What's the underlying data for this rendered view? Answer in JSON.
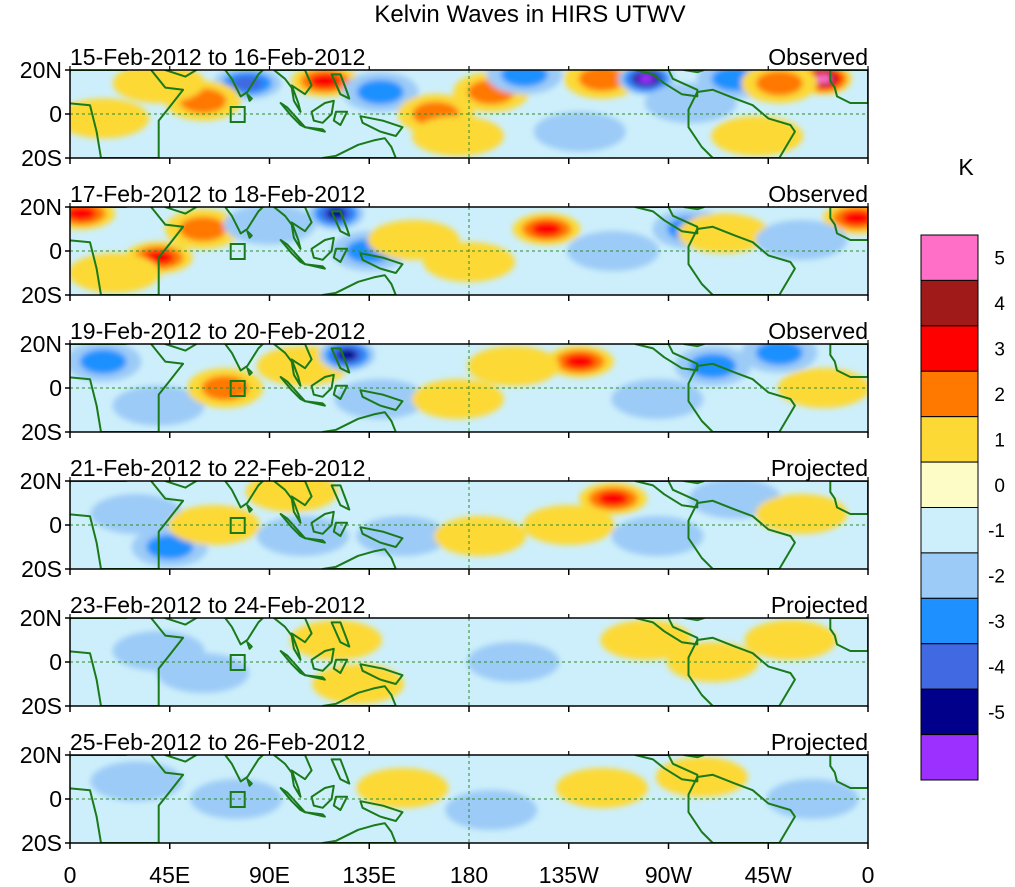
{
  "chart_data": {
    "type": "heatmap",
    "title": "Kelvin Waves in HIRS UTWV",
    "units": "K",
    "x_ticks": [
      "0",
      "45E",
      "90E",
      "135E",
      "180",
      "135W",
      "90W",
      "45W",
      "0"
    ],
    "y_ticks": [
      "20N",
      "0",
      "20S"
    ],
    "colorbar": {
      "colors": [
        "#9b30ff",
        "#00008b",
        "#4169e1",
        "#1e90ff",
        "#9ccbf7",
        "#cdeffb",
        "#fdfbc6",
        "#fcd934",
        "#ff7800",
        "#ff0000",
        "#a11a1a",
        "#ff6ec7"
      ],
      "labels": [
        "-5",
        "-4",
        "-3",
        "-2",
        "-1",
        "0",
        "1",
        "2",
        "3",
        "4",
        "5"
      ]
    },
    "colors": {
      "coast": "#1a7a1a",
      "zero_line": "#2e8b2e",
      "ocean": "#cdeffb"
    },
    "panels": [
      {
        "label": "15-Feb-2012 to 16-Feb-2012",
        "kind": "Observed",
        "blobs": [
          {
            "lon": 80,
            "lat": 14,
            "v": -3
          },
          {
            "lon": 60,
            "lat": 6,
            "v": 2
          },
          {
            "lon": 40,
            "lat": 14,
            "v": 1
          },
          {
            "lon": 15,
            "lat": -2,
            "v": 1
          },
          {
            "lon": 115,
            "lat": 15,
            "v": 3
          },
          {
            "lon": 140,
            "lat": 10,
            "v": -2
          },
          {
            "lon": 165,
            "lat": 0,
            "v": 2
          },
          {
            "lon": 190,
            "lat": 10,
            "v": 2
          },
          {
            "lon": 175,
            "lat": -10,
            "v": 1
          },
          {
            "lon": 205,
            "lat": 18,
            "v": -2
          },
          {
            "lon": 240,
            "lat": 16,
            "v": 2
          },
          {
            "lon": 260,
            "lat": 16,
            "v": -5
          },
          {
            "lon": 280,
            "lat": 5,
            "v": -1
          },
          {
            "lon": 300,
            "lat": 16,
            "v": -2
          },
          {
            "lon": 340,
            "lat": 16,
            "v": 5
          },
          {
            "lon": 320,
            "lat": 14,
            "v": 2
          },
          {
            "lon": 310,
            "lat": -10,
            "v": 1
          },
          {
            "lon": 230,
            "lat": -8,
            "v": -1
          }
        ]
      },
      {
        "label": "17-Feb-2012 to 18-Feb-2012",
        "kind": "Observed",
        "blobs": [
          {
            "lon": 5,
            "lat": 17,
            "v": 3
          },
          {
            "lon": 40,
            "lat": -3,
            "v": 3
          },
          {
            "lon": 20,
            "lat": -10,
            "v": 1
          },
          {
            "lon": 60,
            "lat": 10,
            "v": 2
          },
          {
            "lon": 90,
            "lat": 12,
            "v": -1
          },
          {
            "lon": 120,
            "lat": 17,
            "v": -4
          },
          {
            "lon": 135,
            "lat": 0,
            "v": -2
          },
          {
            "lon": 155,
            "lat": 5,
            "v": 1
          },
          {
            "lon": 180,
            "lat": -5,
            "v": 1
          },
          {
            "lon": 215,
            "lat": 10,
            "v": 3
          },
          {
            "lon": 245,
            "lat": 0,
            "v": -1
          },
          {
            "lon": 280,
            "lat": 10,
            "v": -2
          },
          {
            "lon": 295,
            "lat": 8,
            "v": 1
          },
          {
            "lon": 355,
            "lat": 15,
            "v": 3
          },
          {
            "lon": 330,
            "lat": 5,
            "v": -1
          }
        ]
      },
      {
        "label": "19-Feb-2012 to 20-Feb-2012",
        "kind": "Observed",
        "blobs": [
          {
            "lon": 15,
            "lat": 12,
            "v": -2
          },
          {
            "lon": 40,
            "lat": -8,
            "v": -1
          },
          {
            "lon": 70,
            "lat": 0,
            "v": 2
          },
          {
            "lon": 105,
            "lat": 10,
            "v": 1
          },
          {
            "lon": 125,
            "lat": 15,
            "v": -4
          },
          {
            "lon": 140,
            "lat": -5,
            "v": -1
          },
          {
            "lon": 175,
            "lat": -5,
            "v": 1
          },
          {
            "lon": 230,
            "lat": 12,
            "v": 3
          },
          {
            "lon": 200,
            "lat": 10,
            "v": 1
          },
          {
            "lon": 265,
            "lat": -5,
            "v": -1
          },
          {
            "lon": 290,
            "lat": 10,
            "v": -2
          },
          {
            "lon": 320,
            "lat": 16,
            "v": -2
          },
          {
            "lon": 340,
            "lat": 0,
            "v": 1
          }
        ]
      },
      {
        "label": "21-Feb-2012 to 22-Feb-2012",
        "kind": "Projected",
        "blobs": [
          {
            "lon": 30,
            "lat": 5,
            "v": -1
          },
          {
            "lon": 45,
            "lat": -10,
            "v": -2
          },
          {
            "lon": 65,
            "lat": 0,
            "v": 1
          },
          {
            "lon": 100,
            "lat": 15,
            "v": 1
          },
          {
            "lon": 105,
            "lat": -5,
            "v": -1
          },
          {
            "lon": 150,
            "lat": -5,
            "v": -1
          },
          {
            "lon": 185,
            "lat": -5,
            "v": 1
          },
          {
            "lon": 245,
            "lat": 12,
            "v": 3
          },
          {
            "lon": 225,
            "lat": 0,
            "v": 1
          },
          {
            "lon": 265,
            "lat": -5,
            "v": -1
          },
          {
            "lon": 300,
            "lat": 12,
            "v": -1
          },
          {
            "lon": 330,
            "lat": 5,
            "v": 1
          }
        ]
      },
      {
        "label": "23-Feb-2012 to 24-Feb-2012",
        "kind": "Projected",
        "blobs": [
          {
            "lon": 40,
            "lat": 5,
            "v": -1
          },
          {
            "lon": 60,
            "lat": -5,
            "v": -1
          },
          {
            "lon": 120,
            "lat": 10,
            "v": 1
          },
          {
            "lon": 130,
            "lat": -10,
            "v": 1
          },
          {
            "lon": 200,
            "lat": 0,
            "v": -1
          },
          {
            "lon": 260,
            "lat": 10,
            "v": 1
          },
          {
            "lon": 290,
            "lat": 0,
            "v": 1
          },
          {
            "lon": 325,
            "lat": 10,
            "v": 1
          }
        ]
      },
      {
        "label": "25-Feb-2012 to 26-Feb-2012",
        "kind": "Projected",
        "blobs": [
          {
            "lon": 30,
            "lat": 8,
            "v": -1
          },
          {
            "lon": 75,
            "lat": 0,
            "v": -1
          },
          {
            "lon": 150,
            "lat": 5,
            "v": 1
          },
          {
            "lon": 190,
            "lat": -5,
            "v": -1
          },
          {
            "lon": 240,
            "lat": 5,
            "v": 1
          },
          {
            "lon": 285,
            "lat": 10,
            "v": 1
          },
          {
            "lon": 335,
            "lat": 0,
            "v": -1
          }
        ]
      }
    ]
  }
}
